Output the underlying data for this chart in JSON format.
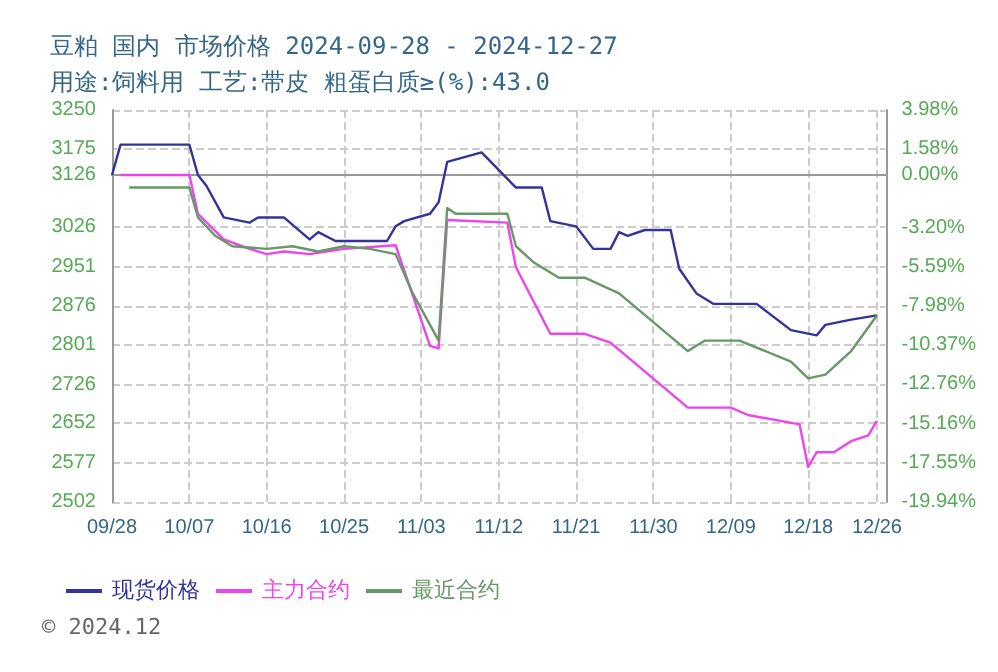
{
  "chart_data": {
    "type": "line",
    "title": "豆粕 国内 市场价格 2024-09-28 - 2024-12-27",
    "subtitle": "用途:饲料用 工艺:带皮 粗蛋白质≥(%):43.0",
    "annotations": [
      "© 2024.12"
    ],
    "xlim": [
      "2024-09-28",
      "2024-12-27"
    ],
    "xticks": [
      {
        "value": "2024-09-28",
        "label": "09/28"
      },
      {
        "value": "2024-10-07",
        "label": "10/07"
      },
      {
        "value": "2024-10-16",
        "label": "10/16"
      },
      {
        "value": "2024-10-25",
        "label": "10/25"
      },
      {
        "value": "2024-11-03",
        "label": "11/03"
      },
      {
        "value": "2024-11-12",
        "label": "11/12"
      },
      {
        "value": "2024-11-21",
        "label": "11/21"
      },
      {
        "value": "2024-11-30",
        "label": "11/30"
      },
      {
        "value": "2024-12-09",
        "label": "12/09"
      },
      {
        "value": "2024-12-18",
        "label": "12/18"
      },
      {
        "value": "2024-12-26",
        "label": "12/26"
      }
    ],
    "ylim": [
      2502,
      3250
    ],
    "yticks": [
      2502,
      2577,
      2652,
      2726,
      2801,
      2876,
      2951,
      3026,
      3126,
      3175,
      3250
    ],
    "y2lim": [
      -19.94,
      3.98
    ],
    "y2ticks": [
      {
        "value": -19.94,
        "label": "-19.94%"
      },
      {
        "value": -17.55,
        "label": "-17.55%"
      },
      {
        "value": -15.16,
        "label": "-15.16%"
      },
      {
        "value": -12.76,
        "label": "-12.76%"
      },
      {
        "value": -10.37,
        "label": "-10.37%"
      },
      {
        "value": -7.98,
        "label": "-7.98%"
      },
      {
        "value": -5.59,
        "label": "-5.59%"
      },
      {
        "value": -3.2,
        "label": "-3.20%"
      },
      {
        "value": 0,
        "label": "0.00%"
      },
      {
        "value": 1.58,
        "label": "1.58%"
      },
      {
        "value": 3.98,
        "label": "3.98%"
      }
    ],
    "grid": true,
    "legend": "bottom",
    "marker": "none",
    "line_style": "solid",
    "series": [
      {
        "name": "现货价格",
        "color": "#333399",
        "x": [
          "2024-09-28",
          "2024-09-29",
          "2024-10-07",
          "2024-10-08",
          "2024-10-09",
          "2024-10-11",
          "2024-10-14",
          "2024-10-15",
          "2024-10-18",
          "2024-10-20",
          "2024-10-21",
          "2024-10-22",
          "2024-10-24",
          "2024-10-30",
          "2024-10-31",
          "2024-11-01",
          "2024-11-04",
          "2024-11-05",
          "2024-11-06",
          "2024-11-10",
          "2024-11-14",
          "2024-11-17",
          "2024-11-18",
          "2024-11-21",
          "2024-11-23",
          "2024-11-25",
          "2024-11-26",
          "2024-11-27",
          "2024-11-29",
          "2024-12-02",
          "2024-12-03",
          "2024-12-05",
          "2024-12-07",
          "2024-12-12",
          "2024-12-16",
          "2024-12-19",
          "2024-12-20",
          "2024-12-23",
          "2024-12-26"
        ],
        "values": [
          3126,
          3184,
          3184,
          3126,
          3105,
          3045,
          3035,
          3045,
          3045,
          3017,
          3003,
          3017,
          3000,
          3000,
          3028,
          3038,
          3052,
          3074,
          3151,
          3169,
          3102,
          3102,
          3038,
          3028,
          2985,
          2985,
          3017,
          3010,
          3021,
          3021,
          2947,
          2900,
          2880,
          2880,
          2830,
          2820,
          2840,
          2850,
          2858
        ]
      },
      {
        "name": "主力合约",
        "color": "#ee44ee",
        "x": [
          "2024-09-29",
          "2024-10-07",
          "2024-10-08",
          "2024-10-11",
          "2024-10-14",
          "2024-10-16",
          "2024-10-18",
          "2024-10-21",
          "2024-10-25",
          "2024-10-31",
          "2024-11-04",
          "2024-11-05",
          "2024-11-06",
          "2024-11-13",
          "2024-11-14",
          "2024-11-18",
          "2024-11-22",
          "2024-11-25",
          "2024-12-04",
          "2024-12-09",
          "2024-12-11",
          "2024-12-17",
          "2024-12-18",
          "2024-12-19",
          "2024-12-21",
          "2024-12-23",
          "2024-12-25",
          "2024-12-26"
        ],
        "values": [
          3126,
          3126,
          3052,
          3003,
          2985,
          2975,
          2980,
          2975,
          2985,
          2992,
          2800,
          2795,
          3040,
          3035,
          2950,
          2823,
          2823,
          2806,
          2682,
          2682,
          2668,
          2650,
          2569,
          2597,
          2597,
          2618,
          2629,
          2657
        ]
      },
      {
        "name": "最近合约",
        "color": "#669966",
        "x": [
          "2024-09-30",
          "2024-10-07",
          "2024-10-08",
          "2024-10-10",
          "2024-10-12",
          "2024-10-16",
          "2024-10-19",
          "2024-10-22",
          "2024-10-25",
          "2024-10-28",
          "2024-10-31",
          "2024-11-02",
          "2024-11-05",
          "2024-11-06",
          "2024-11-07",
          "2024-11-13",
          "2024-11-14",
          "2024-11-16",
          "2024-11-19",
          "2024-11-22",
          "2024-11-26",
          "2024-12-04",
          "2024-12-06",
          "2024-12-10",
          "2024-12-16",
          "2024-12-18",
          "2024-12-20",
          "2024-12-23",
          "2024-12-26"
        ],
        "values": [
          3102,
          3102,
          3045,
          3010,
          2990,
          2985,
          2990,
          2980,
          2990,
          2985,
          2975,
          2900,
          2810,
          3063,
          3052,
          3052,
          2990,
          2960,
          2930,
          2930,
          2900,
          2790,
          2810,
          2810,
          2770,
          2738,
          2745,
          2790,
          2858
        ]
      }
    ]
  }
}
